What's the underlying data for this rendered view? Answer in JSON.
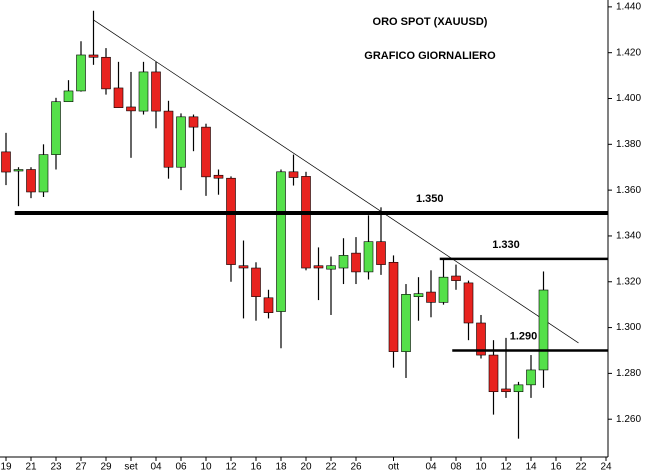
{
  "chart_data": {
    "type": "candlestick",
    "title": "ORO SPOT (XAUUSD)",
    "subtitle": "GRAFICO GIORNALIERO",
    "x": [
      0,
      1,
      2,
      3,
      4,
      5,
      6,
      7,
      8,
      9,
      10,
      11,
      12,
      13,
      14,
      15,
      16,
      17,
      18,
      19,
      20,
      21,
      22,
      23,
      24,
      25,
      26,
      27,
      28,
      29,
      30,
      31,
      32,
      33,
      34,
      35,
      36,
      37,
      38,
      39,
      40,
      41,
      42,
      43
    ],
    "open": [
      1.3767,
      1.3685,
      1.369,
      1.3592,
      1.3755,
      1.3986,
      1.4033,
      1.419,
      1.418,
      1.4046,
      1.3963,
      1.3945,
      1.4116,
      1.3945,
      1.37,
      1.392,
      1.3875,
      1.3665,
      1.3652,
      1.327,
      1.326,
      1.313,
      1.307,
      1.368,
      1.366,
      1.327,
      1.3255,
      1.326,
      1.3325,
      1.3243,
      1.3375,
      1.3285,
      1.2895,
      1.3135,
      1.3155,
      1.311,
      1.3225,
      1.3195,
      1.302,
      1.288,
      1.2732,
      1.272,
      1.275,
      1.2815
    ],
    "high": [
      1.385,
      1.37,
      1.37,
      1.38,
      1.4003,
      1.408,
      1.425,
      1.4383,
      1.422,
      1.416,
      1.4116,
      1.416,
      1.416,
      1.399,
      1.3935,
      1.393,
      1.389,
      1.369,
      1.366,
      1.338,
      1.3285,
      1.3165,
      1.369,
      1.3755,
      1.368,
      1.335,
      1.331,
      1.339,
      1.3395,
      1.349,
      1.3525,
      1.3315,
      1.319,
      1.322,
      1.325,
      1.3295,
      1.3275,
      1.3205,
      1.3055,
      1.2945,
      1.2955,
      1.2763,
      1.288,
      1.3245
    ],
    "low": [
      1.3622,
      1.353,
      1.3565,
      1.357,
      1.369,
      1.3986,
      1.403,
      1.4147,
      1.4017,
      1.396,
      1.3741,
      1.393,
      1.387,
      1.365,
      1.36,
      1.377,
      1.3575,
      1.358,
      1.32,
      1.304,
      1.303,
      1.304,
      1.291,
      1.362,
      1.325,
      1.312,
      1.3055,
      1.319,
      1.319,
      1.321,
      1.323,
      1.2825,
      1.278,
      1.303,
      1.3045,
      1.31,
      1.3165,
      1.2945,
      1.2865,
      1.262,
      1.2693,
      1.2515,
      1.2693,
      1.2737
    ],
    "close": [
      1.3679,
      1.369,
      1.3592,
      1.3755,
      1.3986,
      1.4033,
      1.419,
      1.418,
      1.4042,
      1.396,
      1.3946,
      1.4116,
      1.3945,
      1.37,
      1.392,
      1.3875,
      1.3658,
      1.3652,
      1.3275,
      1.326,
      1.3135,
      1.3065,
      1.368,
      1.3655,
      1.326,
      1.326,
      1.327,
      1.3315,
      1.3243,
      1.3375,
      1.3275,
      1.2895,
      1.3145,
      1.3148,
      1.311,
      1.322,
      1.3205,
      1.302,
      1.288,
      1.272,
      1.272,
      1.275,
      1.2815,
      1.3164
    ],
    "up_color": "#55e04a",
    "down_color": "#e8231f",
    "xlim": [
      -0.48,
      48.16
    ],
    "xticks": [
      {
        "value": 0,
        "label": "19"
      },
      {
        "value": 2,
        "label": "21"
      },
      {
        "value": 4,
        "label": "23"
      },
      {
        "value": 6,
        "label": "27"
      },
      {
        "value": 8,
        "label": "29"
      },
      {
        "value": 10,
        "label": "set"
      },
      {
        "value": 12,
        "label": "04"
      },
      {
        "value": 14,
        "label": "06"
      },
      {
        "value": 16,
        "label": "10"
      },
      {
        "value": 18,
        "label": "12"
      },
      {
        "value": 20,
        "label": "16"
      },
      {
        "value": 22,
        "label": "18"
      },
      {
        "value": 24,
        "label": "20"
      },
      {
        "value": 26,
        "label": "22"
      },
      {
        "value": 28,
        "label": "26"
      },
      {
        "value": 31,
        "label": "ott"
      },
      {
        "value": 34,
        "label": "04"
      },
      {
        "value": 36,
        "label": "08"
      },
      {
        "value": 38,
        "label": "10"
      },
      {
        "value": 40,
        "label": "12"
      },
      {
        "value": 42,
        "label": "14"
      },
      {
        "value": 44,
        "label": "16"
      },
      {
        "value": 46,
        "label": "22"
      },
      {
        "value": 48,
        "label": "24"
      }
    ],
    "ylim": [
      1.2435,
      1.443
    ],
    "yticks": [
      {
        "value": 1.26,
        "label": "1.260"
      },
      {
        "value": 1.28,
        "label": "1.280"
      },
      {
        "value": 1.3,
        "label": "1.300"
      },
      {
        "value": 1.32,
        "label": "1.320"
      },
      {
        "value": 1.34,
        "label": "1.340"
      },
      {
        "value": 1.36,
        "label": "1.360"
      },
      {
        "value": 1.38,
        "label": "1.380"
      },
      {
        "value": 1.4,
        "label": "1.400"
      },
      {
        "value": 1.42,
        "label": "1.420"
      },
      {
        "value": 1.44,
        "label": "1.440"
      }
    ],
    "levels": [
      {
        "value": 1.35,
        "label": "1.350",
        "x": [
          0.7,
          48.16
        ]
      },
      {
        "value": 1.33,
        "label": "1.330",
        "x": [
          34.7,
          48.16
        ]
      },
      {
        "value": 1.29,
        "label": "1.290",
        "x": [
          35.7,
          48.16
        ]
      }
    ],
    "trendline": {
      "x": [
        7,
        45.8
      ],
      "y": [
        1.4343,
        1.2933
      ]
    }
  }
}
